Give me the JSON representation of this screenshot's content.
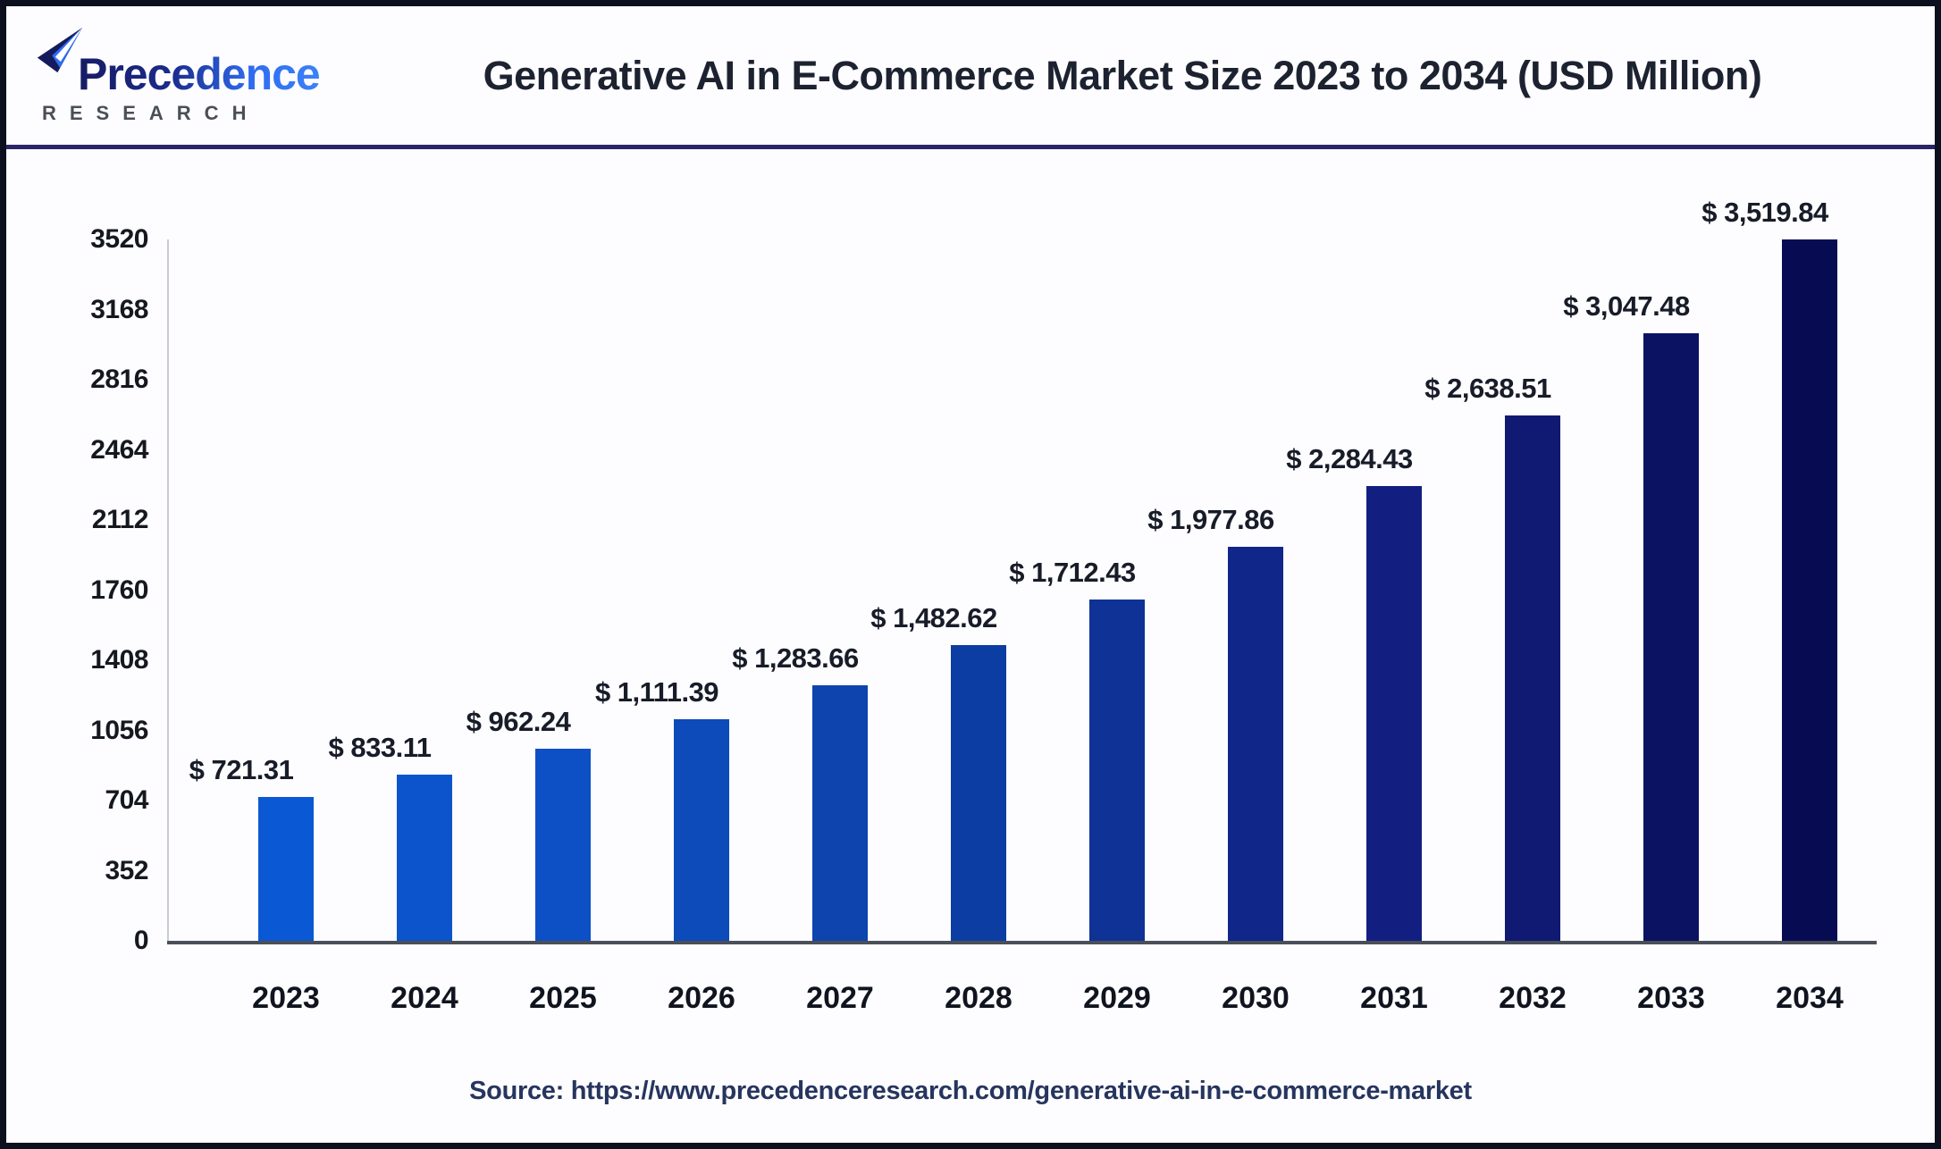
{
  "header": {
    "logo": {
      "brand": "Precedence",
      "sub": "RESEARCH"
    },
    "title": "Generative AI in E-Commerce Market Size 2023 to 2034 (USD Million)"
  },
  "chart_data": {
    "type": "bar",
    "title": "Generative AI in E-Commerce Market Size 2023 to 2034 (USD Million)",
    "unit": "USD Million",
    "categories": [
      "2023",
      "2024",
      "2025",
      "2026",
      "2027",
      "2028",
      "2029",
      "2030",
      "2031",
      "2032",
      "2033",
      "2034"
    ],
    "values": [
      721.31,
      833.11,
      962.24,
      1111.39,
      1283.66,
      1482.62,
      1712.43,
      1977.86,
      2284.43,
      2638.51,
      3047.48,
      3519.84
    ],
    "bar_labels": [
      "$ 721.31",
      "$ 833.11",
      "$ 962.24",
      "$ 1,111.39",
      "$ 1,283.66",
      "$ 1,482.62",
      "$ 1,712.43",
      "$ 1,977.86",
      "$ 2,284.43",
      "$ 2,638.51",
      "$ 3,047.48",
      "$ 3,519.84"
    ],
    "bar_colors": [
      "#0b58d4",
      "#0c54cc",
      "#0d50c6",
      "#0d4aba",
      "#0d44ae",
      "#0c3da2",
      "#0e3295",
      "#102689",
      "#131f80",
      "#111a72",
      "#0b1261",
      "#070c52"
    ],
    "xlabel": "",
    "ylabel": "",
    "ylim": [
      0,
      3520
    ],
    "yticks": [
      0,
      352,
      704,
      1056,
      1408,
      1760,
      2112,
      2464,
      2816,
      3168,
      3520
    ],
    "grid": false,
    "legend_position": "none"
  },
  "footer": {
    "source": "Source: https://www.precedenceresearch.com/generative-ai-in-e-commerce-market"
  },
  "colors": {
    "accent_light": "#0b58d4",
    "accent_dark": "#070c52",
    "divider": "#2b2566",
    "frame": "#0b0f1e"
  }
}
